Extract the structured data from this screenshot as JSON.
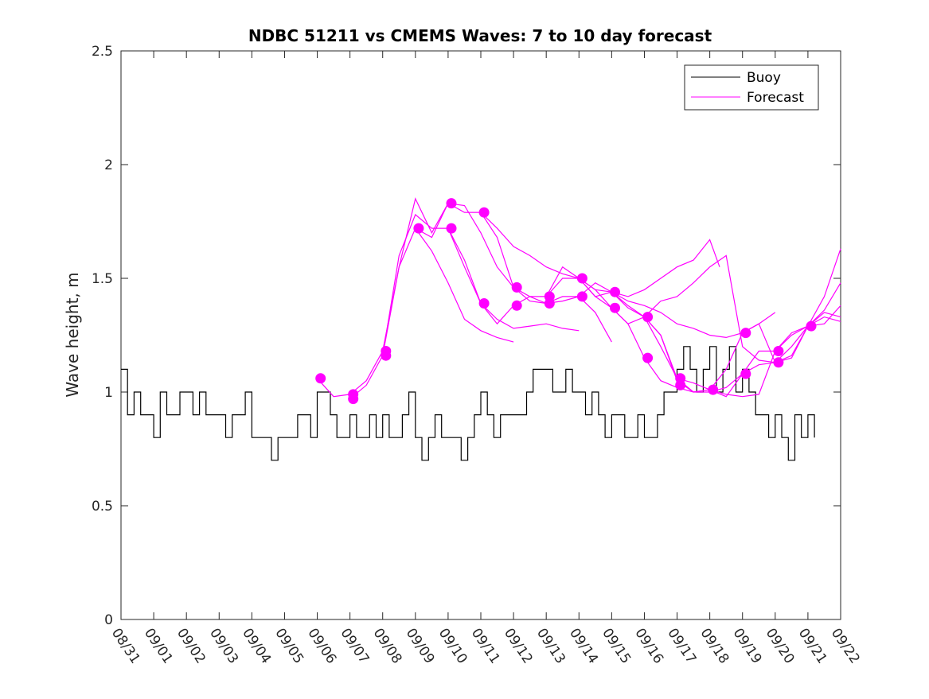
{
  "chart_data": {
    "type": "line",
    "title": "NDBC 51211 vs CMEMS Waves: 7 to 10 day forecast",
    "xlabel": "",
    "ylabel": "Wave height, m",
    "ylim": [
      0,
      2.5
    ],
    "xlim": [
      0,
      22
    ],
    "yticks": [
      0,
      0.5,
      1,
      1.5,
      2,
      2.5
    ],
    "ytick_labels": [
      "0",
      "0.5",
      "1",
      "1.5",
      "2",
      "2.5"
    ],
    "xticks": [
      0,
      1,
      2,
      3,
      4,
      5,
      6,
      7,
      8,
      9,
      10,
      11,
      12,
      13,
      14,
      15,
      16,
      17,
      18,
      19,
      20,
      21,
      22
    ],
    "xtick_labels": [
      "08/31",
      "09/01",
      "09/02",
      "09/03",
      "09/04",
      "09/05",
      "09/06",
      "09/07",
      "09/08",
      "09/09",
      "09/10",
      "09/11",
      "09/12",
      "09/13",
      "09/14",
      "09/15",
      "09/16",
      "09/17",
      "09/18",
      "09/19",
      "09/20",
      "09/21",
      "09/22"
    ],
    "legend": {
      "position": "top-right",
      "entries": [
        {
          "label": "Buoy",
          "color": "#000000"
        },
        {
          "label": "Forecast",
          "color": "#ff00ff"
        }
      ]
    },
    "colors": {
      "buoy": "#000000",
      "forecast": "#ff00ff"
    },
    "buoy_series": {
      "name": "Buoy",
      "x": [
        0,
        0.2,
        0.4,
        0.6,
        0.8,
        1,
        1.2,
        1.4,
        1.6,
        1.8,
        2,
        2.2,
        2.4,
        2.6,
        2.8,
        3,
        3.2,
        3.4,
        3.6,
        3.8,
        4,
        4.2,
        4.4,
        4.6,
        4.8,
        5,
        5.2,
        5.4,
        5.6,
        5.8,
        6,
        6.2,
        6.4,
        6.6,
        6.8,
        7,
        7.2,
        7.4,
        7.6,
        7.8,
        8,
        8.2,
        8.4,
        8.6,
        8.8,
        9,
        9.2,
        9.4,
        9.6,
        9.8,
        10,
        10.2,
        10.4,
        10.6,
        10.8,
        11,
        11.2,
        11.4,
        11.6,
        11.8,
        12,
        12.2,
        12.4,
        12.6,
        12.8,
        13,
        13.2,
        13.4,
        13.6,
        13.8,
        14,
        14.2,
        14.4,
        14.6,
        14.8,
        15,
        15.2,
        15.4,
        15.6,
        15.8,
        16,
        16.2,
        16.4,
        16.6,
        16.8,
        17,
        17.2,
        17.4,
        17.6,
        17.8,
        18,
        18.2,
        18.4,
        18.6,
        18.8,
        19,
        19.2,
        19.4,
        19.6,
        19.8,
        20,
        20.2,
        20.4,
        20.6,
        20.8,
        21,
        21.2
      ],
      "values": [
        1.1,
        0.9,
        1.0,
        0.9,
        0.9,
        0.8,
        1.0,
        0.9,
        0.9,
        1.0,
        1.0,
        0.9,
        1.0,
        0.9,
        0.9,
        0.9,
        0.8,
        0.9,
        0.9,
        1.0,
        0.8,
        0.8,
        0.8,
        0.7,
        0.8,
        0.8,
        0.8,
        0.9,
        0.9,
        0.8,
        1.0,
        1.0,
        0.9,
        0.8,
        0.8,
        0.9,
        0.8,
        0.8,
        0.9,
        0.8,
        0.9,
        0.8,
        0.8,
        0.9,
        1.0,
        0.8,
        0.7,
        0.8,
        0.9,
        0.8,
        0.8,
        0.8,
        0.7,
        0.8,
        0.9,
        1.0,
        0.9,
        0.8,
        0.9,
        0.9,
        0.9,
        0.9,
        1.0,
        1.1,
        1.1,
        1.1,
        1.0,
        1.0,
        1.1,
        1.0,
        1.0,
        0.9,
        1.0,
        0.9,
        0.8,
        0.9,
        0.9,
        0.8,
        0.8,
        0.9,
        0.8,
        0.8,
        0.9,
        1.0,
        1.0,
        1.1,
        1.2,
        1.1,
        1.0,
        1.1,
        1.2,
        1.0,
        1.1,
        1.2,
        1.0,
        1.1,
        1.0,
        0.9,
        0.9,
        0.8,
        0.9,
        0.8,
        0.7,
        0.9,
        0.8,
        0.9,
        0.8
      ]
    },
    "forecast_series": [
      {
        "name": "Forecast",
        "x": [
          6.0,
          6.5,
          7.0,
          7.5,
          8.0,
          8.5,
          9.0,
          9.5,
          10.0,
          10.5,
          11.0,
          11.5,
          12.0
        ],
        "values": [
          1.06,
          0.98,
          0.99,
          1.05,
          1.18,
          1.55,
          1.72,
          1.62,
          1.48,
          1.32,
          1.27,
          1.24,
          1.22
        ]
      },
      {
        "name": "Forecast",
        "x": [
          7.0,
          7.5,
          8.0,
          8.5,
          9.0,
          9.5,
          10.0,
          10.5,
          11.0,
          11.5,
          12.0,
          12.5,
          13.0,
          13.5,
          14.0
        ],
        "values": [
          0.97,
          1.03,
          1.16,
          1.6,
          1.78,
          1.72,
          1.72,
          1.58,
          1.39,
          1.32,
          1.28,
          1.29,
          1.3,
          1.28,
          1.27
        ]
      },
      {
        "name": "Forecast",
        "x": [
          8.0,
          8.5,
          9.0,
          9.5,
          10.0,
          10.5,
          11.0,
          11.5,
          12.0,
          12.5,
          13.0,
          13.5,
          14.0,
          14.5,
          15.0
        ],
        "values": [
          1.16,
          1.55,
          1.85,
          1.7,
          1.83,
          1.82,
          1.7,
          1.55,
          1.46,
          1.42,
          1.39,
          1.4,
          1.42,
          1.35,
          1.22
        ]
      },
      {
        "name": "Forecast",
        "x": [
          9.0,
          9.5,
          10.0,
          10.5,
          11.0,
          11.5,
          12.0,
          12.5,
          13.0,
          13.5,
          14.0,
          14.5,
          15.0,
          15.5,
          16.0,
          16.5,
          17.0,
          17.5,
          18.0,
          18.5,
          19.0,
          19.5,
          20.0
        ],
        "values": [
          1.72,
          1.68,
          1.83,
          1.79,
          1.79,
          1.72,
          1.64,
          1.6,
          1.55,
          1.52,
          1.5,
          1.45,
          1.44,
          1.4,
          1.38,
          1.35,
          1.3,
          1.28,
          1.25,
          1.24,
          1.26,
          1.3,
          1.35
        ]
      },
      {
        "name": "Forecast",
        "x": [
          10.0,
          10.5,
          11.0,
          11.5,
          12.0,
          12.5,
          13.0,
          13.5,
          14.0,
          14.5,
          15.0,
          15.5,
          16.0,
          16.5,
          17.0,
          17.5,
          18.0,
          18.5,
          19.0,
          19.5,
          20.0,
          20.5,
          21.0,
          21.5,
          22.0
        ],
        "values": [
          1.72,
          1.55,
          1.39,
          1.3,
          1.38,
          1.42,
          1.42,
          1.5,
          1.5,
          1.45,
          1.37,
          1.3,
          1.15,
          1.05,
          1.02,
          1.0,
          1.0,
          1.02,
          1.08,
          1.12,
          1.13,
          1.2,
          1.29,
          1.35,
          1.33
        ]
      },
      {
        "name": "Forecast",
        "x": [
          11.0,
          11.5,
          12.0,
          12.5,
          13.0,
          13.5,
          14.0,
          14.5,
          15.0,
          15.5,
          16.0,
          16.5,
          17.0,
          17.5,
          18.0,
          18.5,
          19.0,
          19.5,
          20.0,
          20.5,
          21.0,
          21.5,
          22.0
        ],
        "values": [
          1.79,
          1.68,
          1.46,
          1.4,
          1.39,
          1.42,
          1.42,
          1.48,
          1.44,
          1.37,
          1.33,
          1.25,
          1.06,
          1.0,
          1.01,
          0.99,
          0.98,
          0.99,
          1.18,
          1.26,
          1.29,
          1.3,
          1.38
        ]
      },
      {
        "name": "Forecast",
        "x": [
          13.0,
          13.5,
          14.0,
          14.5,
          15.0,
          15.5,
          16.0,
          16.5,
          17.0,
          17.5,
          18.0,
          18.5,
          19.0,
          19.5,
          20.0,
          20.5,
          21.0,
          21.5,
          22.0
        ],
        "values": [
          1.42,
          1.55,
          1.5,
          1.42,
          1.37,
          1.3,
          1.33,
          1.25,
          1.05,
          1.0,
          1.01,
          0.98,
          1.08,
          1.18,
          1.18,
          1.25,
          1.29,
          1.42,
          1.63
        ]
      },
      {
        "name": "Forecast",
        "x": [
          14.0,
          14.5,
          15.0,
          15.5,
          16.0,
          16.5,
          17.0,
          17.5,
          18.0,
          18.5,
          19.0,
          19.5,
          20.0,
          20.5,
          21.0,
          21.5,
          22.0
        ],
        "values": [
          1.5,
          1.42,
          1.44,
          1.38,
          1.33,
          1.2,
          1.06,
          1.04,
          1.01,
          1.1,
          1.26,
          1.3,
          1.13,
          1.15,
          1.29,
          1.36,
          1.48
        ]
      },
      {
        "name": "Forecast",
        "x": [
          16.0,
          16.5,
          17.0,
          17.5,
          18.0,
          18.5,
          19.0,
          19.5,
          20.0,
          20.5,
          21.0,
          21.5,
          22.0
        ],
        "values": [
          1.33,
          1.4,
          1.42,
          1.48,
          1.55,
          1.6,
          1.2,
          1.14,
          1.13,
          1.16,
          1.29,
          1.33,
          1.31
        ]
      },
      {
        "name": "Forecast",
        "x": [
          15.0,
          15.5,
          16.0,
          16.5,
          17.0,
          17.5,
          18.0,
          18.3
        ],
        "values": [
          1.44,
          1.42,
          1.45,
          1.5,
          1.55,
          1.58,
          1.67,
          1.55
        ]
      }
    ],
    "forecast_markers": {
      "x": [
        6.1,
        7.1,
        7.1,
        8.1,
        8.1,
        9.1,
        10.1,
        10.1,
        11.1,
        11.1,
        12.1,
        12.1,
        13.1,
        13.1,
        14.1,
        14.1,
        15.1,
        15.1,
        16.1,
        16.1,
        17.1,
        17.1,
        18.1,
        19.1,
        19.1,
        20.1,
        20.1,
        21.1
      ],
      "values": [
        1.06,
        0.97,
        0.99,
        1.16,
        1.18,
        1.72,
        1.83,
        1.72,
        1.79,
        1.39,
        1.46,
        1.38,
        1.42,
        1.39,
        1.5,
        1.42,
        1.44,
        1.37,
        1.33,
        1.15,
        1.06,
        1.03,
        1.01,
        1.26,
        1.08,
        1.18,
        1.13,
        1.29
      ]
    }
  }
}
